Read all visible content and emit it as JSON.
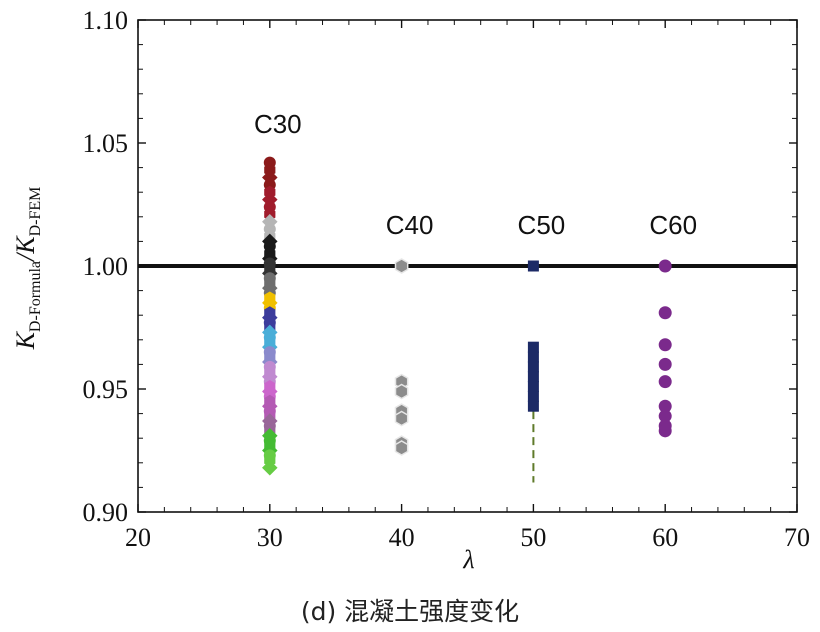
{
  "chart_data": {
    "type": "scatter",
    "xlabel": "λ",
    "ylabel_main": "K",
    "ylabel_sub1": "D-Formula",
    "ylabel_mid": "/K",
    "ylabel_sub2": "D-FEM",
    "xlim": [
      20,
      70
    ],
    "ylim": [
      0.9,
      1.1
    ],
    "x_ticks": [
      "20",
      "30",
      "40",
      "50",
      "60",
      "70"
    ],
    "y_ticks": [
      "0.90",
      "0.95",
      "1.00",
      "1.05",
      "1.10"
    ],
    "reference_line": 1.0,
    "grid": false,
    "groups": [
      {
        "name": "C30",
        "x": 30,
        "label_y": 1.054,
        "values": [
          1.042,
          1.039,
          1.036,
          1.033,
          1.03,
          1.027,
          1.024,
          1.021,
          1.018,
          1.015,
          1.012,
          1.01,
          1.008,
          1.005,
          1.003,
          1.001,
          0.999,
          0.997,
          0.995,
          0.993,
          0.991,
          0.989,
          0.987,
          0.985,
          0.983,
          0.981,
          0.979,
          0.977,
          0.975,
          0.973,
          0.971,
          0.969,
          0.967,
          0.965,
          0.963,
          0.961,
          0.959,
          0.957,
          0.955,
          0.953,
          0.951,
          0.949,
          0.947,
          0.945,
          0.943,
          0.941,
          0.939,
          0.937,
          0.935,
          0.933,
          0.931,
          0.929,
          0.927,
          0.925,
          0.923,
          0.921,
          0.918
        ]
      },
      {
        "name": "C40",
        "x": 40,
        "label_y": 1.013,
        "values": [
          1.0,
          0.953,
          0.949,
          0.941,
          0.938,
          0.928,
          0.926
        ]
      },
      {
        "name": "C50",
        "x": 50,
        "label_y": 1.013,
        "values": [
          1.0,
          0.967,
          0.963,
          0.959,
          0.955,
          0.951,
          0.947,
          0.943
        ],
        "dashed_segment": [
          0.941,
          0.912
        ]
      },
      {
        "name": "C60",
        "x": 60,
        "label_y": 1.013,
        "values": [
          1.0,
          0.981,
          0.968,
          0.96,
          0.953,
          0.943,
          0.939,
          0.935,
          0.933
        ]
      }
    ]
  },
  "caption": "(d) 混凝土强度变化",
  "colors": {
    "c30_palette": [
      "#8b1a1a",
      "#a01c2c",
      "#b5b5b5",
      "#1a1a1a",
      "#333333",
      "#6e6e6e",
      "#f0c000",
      "#3c3c9c",
      "#4aaed8",
      "#8a8acc",
      "#c08ad0",
      "#cc66cc",
      "#b45ab4",
      "#996699",
      "#44bb33",
      "#66cc44"
    ],
    "c40": "#8c8c8c",
    "c50": "#1c2a66",
    "c60": "#7b2a8c",
    "dash": "#5f7a2a",
    "axis": "#111111"
  }
}
